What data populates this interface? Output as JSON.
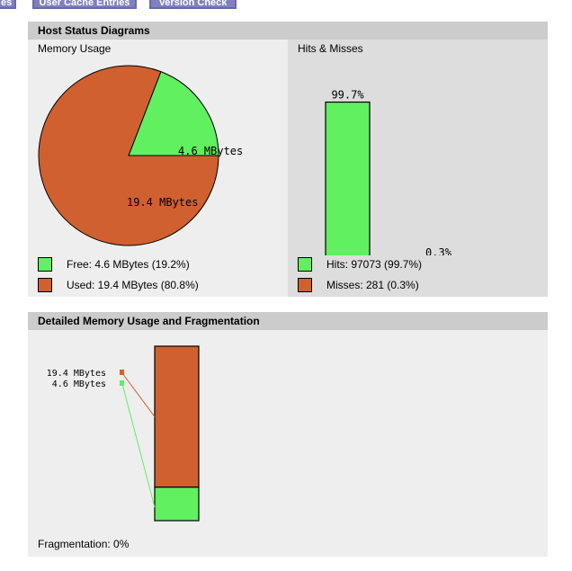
{
  "tabs": {
    "left_label": "es",
    "user_cache_label": "User Cache Entries",
    "version_check_label": "Version Check"
  },
  "host_status": {
    "title": "Host Status Diagrams",
    "memory_usage_label": "Memory Usage",
    "hits_misses_label": "Hits & Misses",
    "legend": {
      "free": "Free: 4.6 MBytes (19.2%)",
      "used": "Used: 19.4 MBytes (80.8%)",
      "hits": "Hits: 97073 (99.7%)",
      "misses": "Misses: 281 (0.3%)"
    }
  },
  "detailed": {
    "title": "Detailed Memory Usage and Fragmentation",
    "fragmentation": "Fragmentation: 0%"
  },
  "colors": {
    "free": "#60f060",
    "used": "#d06030"
  },
  "chart_data": [
    {
      "type": "pie",
      "labels": [
        "4.6 MBytes",
        "19.4 MBytes"
      ],
      "values": [
        4.6,
        19.4
      ],
      "colors": [
        "#60f060",
        "#d06030"
      ]
    },
    {
      "type": "bar",
      "categories": [
        "Hits",
        "Misses"
      ],
      "values": [
        99.7,
        0.3
      ],
      "data_labels": [
        "99.7%",
        "0.3%"
      ],
      "colors": [
        "#60f060",
        "#d06030"
      ]
    },
    {
      "type": "bar",
      "stacked": true,
      "labels": [
        "19.4 MBytes",
        "4.6 MBytes"
      ],
      "values": [
        19.4,
        4.6
      ],
      "colors": [
        "#d06030",
        "#60f060"
      ]
    }
  ]
}
